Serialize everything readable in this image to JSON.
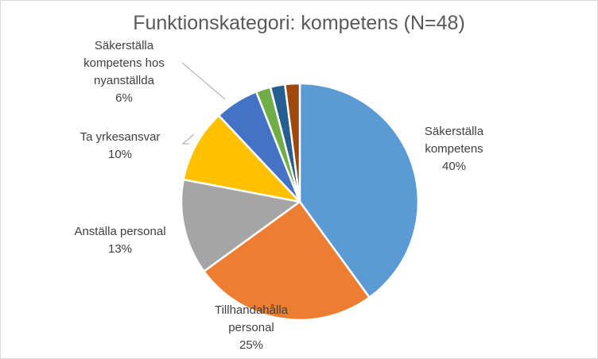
{
  "chart_data": {
    "type": "pie",
    "title": "Funktionskategori: kompetens (N=48)",
    "slices": [
      {
        "label": "Säkerställa kompetens",
        "label_lines": [
          "Säkerställa",
          "kompetens"
        ],
        "value": 40,
        "pct_label": "40%",
        "color": "#5b9bd5"
      },
      {
        "label": "Tillhandahålla personal",
        "label_lines": [
          "Tillhandahålla",
          "personal"
        ],
        "value": 25,
        "pct_label": "25%",
        "color": "#ed7d31"
      },
      {
        "label": "Anställa personal",
        "label_lines": [
          "Anställa personal"
        ],
        "value": 13,
        "pct_label": "13%",
        "color": "#a5a5a5"
      },
      {
        "label": "Ta yrkesansvar",
        "label_lines": [
          "Ta yrkesansvar"
        ],
        "value": 10,
        "pct_label": "10%",
        "color": "#ffc000"
      },
      {
        "label": "Säkerställa kompetens hos nyanställda",
        "label_lines": [
          "Säkerställa",
          "kompetens hos",
          "nyanställda"
        ],
        "value": 6,
        "pct_label": "6%",
        "color": "#4472c4"
      },
      {
        "label": "",
        "value": 2,
        "color": "#70ad47"
      },
      {
        "label": "",
        "value": 2,
        "color": "#255e91"
      },
      {
        "label": "",
        "value": 2,
        "color": "#9e480e"
      }
    ]
  }
}
